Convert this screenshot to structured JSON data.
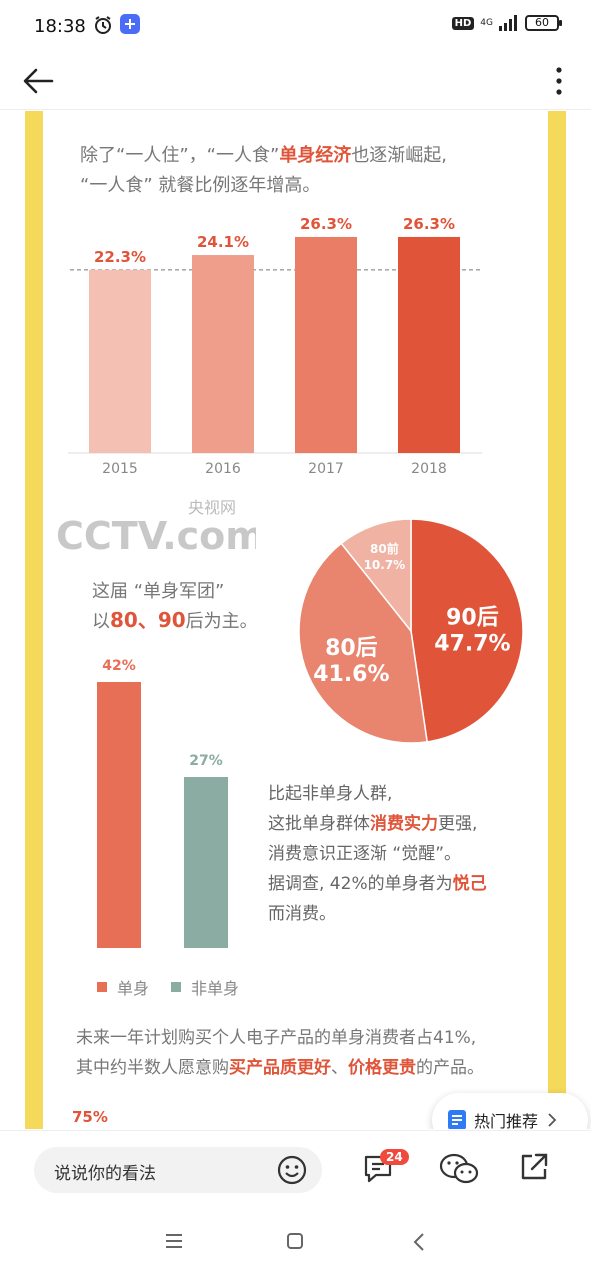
{
  "status_bar": {
    "time": "18:38",
    "battery": "60",
    "network": "4G",
    "hd": "HD"
  },
  "article": {
    "intro_line1_pre": "除了“一人住”，“一人食”",
    "intro_line1_hl": "单身经济",
    "intro_line1_post": "也逐渐崛起,",
    "intro_line2": "“一人食” 就餐比例逐年增高。",
    "group_line1": "这届 “单身军团”",
    "group_line2_pre": "以",
    "group_line2_hl": "80、90",
    "group_line2_post": "后为主。",
    "compare_line1": "比起非单身人群,",
    "compare_line2_pre": "这批单身群体",
    "compare_line2_hl": "消费实力",
    "compare_line2_post": "更强,",
    "compare_line3": "消费意识正逐渐 “觉醒”。",
    "compare_line4_pre": "据调查, 42%的单身者为",
    "compare_line4_hl": "悦己",
    "compare_line5": "而消费。",
    "future_line1": "未来一年计划购买个人电子产品的单身消费者占41%,",
    "future_line2_pre": "其中约半数人愿意购",
    "future_line2_hl1": "买产品质更好",
    "future_line2_mid": "、",
    "future_line2_hl2": "价格更贵",
    "future_line2_post": "的产品。",
    "next_value": "75%",
    "watermark_cn": "央视网",
    "watermark_en": "CCTV.com"
  },
  "legend": {
    "single": "单身",
    "non_single": "非单身"
  },
  "hot_recommend": {
    "label": "热门推荐"
  },
  "comment_bar": {
    "placeholder": "说说你的看法",
    "comment_count": "24"
  },
  "colors": {
    "accent": "#e0553a",
    "frame": "#f5d95b",
    "teal": "#8aaca2"
  },
  "chart_data": [
    {
      "type": "bar",
      "categories": [
        "2015",
        "2016",
        "2017",
        "2018"
      ],
      "values": [
        22.3,
        24.1,
        26.3,
        26.3
      ],
      "value_labels": [
        "22.3%",
        "24.1%",
        "26.3%",
        "26.3%"
      ],
      "colors": [
        "#f3c0b3",
        "#ee9e8a",
        "#e97d66",
        "#e0553a"
      ],
      "ylim": [
        0,
        28
      ]
    },
    {
      "type": "pie",
      "categories": [
        "90后",
        "80后",
        "80前"
      ],
      "values": [
        47.7,
        41.6,
        10.7
      ],
      "value_labels": [
        "47.7%",
        "41.6%",
        "10.7%"
      ],
      "colors": [
        "#e0553a",
        "#e9846e",
        "#efb2a3"
      ]
    },
    {
      "type": "bar",
      "categories": [
        "单身",
        "非单身"
      ],
      "values": [
        42,
        27
      ],
      "value_labels": [
        "42%",
        "27%"
      ],
      "colors": [
        "#e66f56",
        "#8aaca2"
      ],
      "ylim": [
        0,
        45
      ]
    }
  ]
}
